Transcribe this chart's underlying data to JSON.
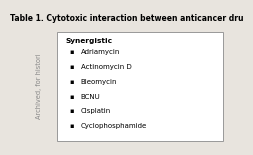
{
  "title": "Table 1. Cytotoxic interaction between anticancer dru",
  "category_label": "Synergistic",
  "items": [
    "Adriamycin",
    "Actinomycin D",
    "Bleomycin",
    "BCNU",
    "Cisplatin",
    "Cyclophosphamide"
  ],
  "bg_color": "#e8e4de",
  "table_bg": "#ffffff",
  "border_color": "#999999",
  "title_fontsize": 5.5,
  "category_fontsize": 5.3,
  "item_fontsize": 5.0,
  "watermark_text": "Archived, for histori",
  "watermark_fontsize": 4.8,
  "watermark_color": "#888888"
}
